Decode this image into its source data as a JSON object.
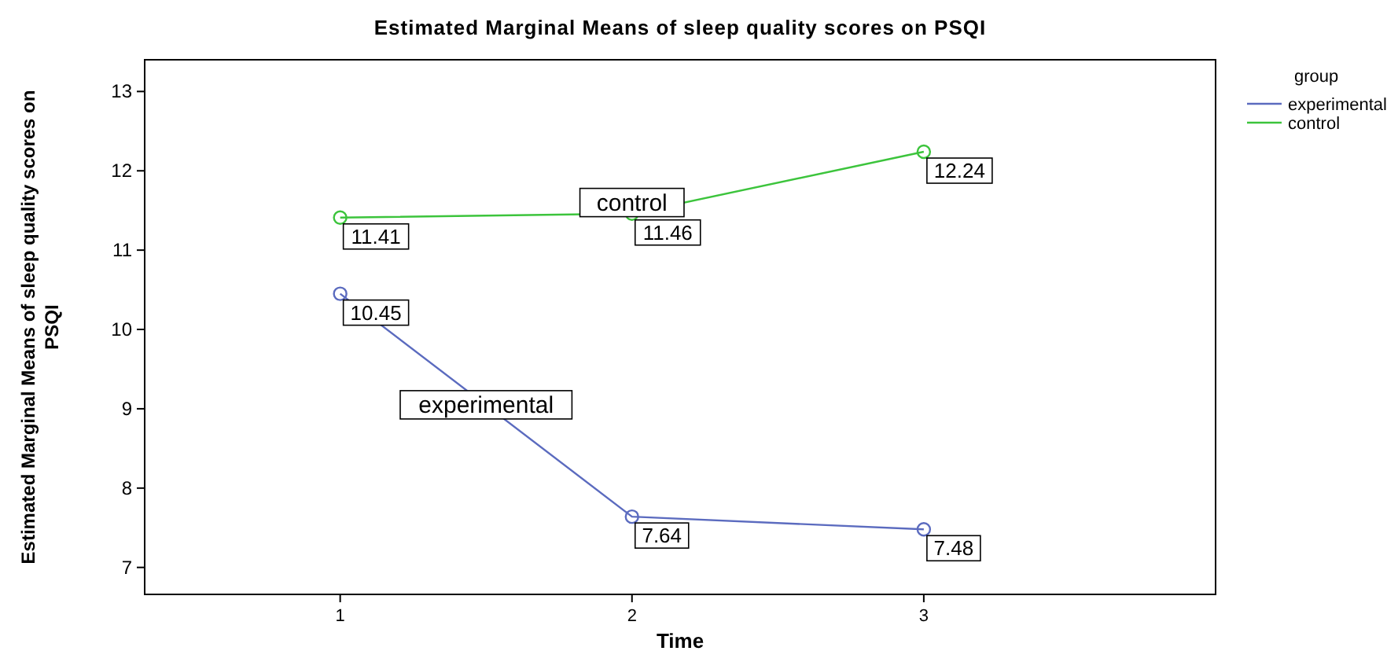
{
  "chart_data": {
    "type": "line",
    "title": "Estimated Marginal Means of sleep quality scores on PSQI",
    "xlabel": "Time",
    "ylabel": "Estimated Marginal Means of sleep quality scores on PSQI",
    "legend_title": "group",
    "x": [
      1,
      2,
      3
    ],
    "xlim": [
      0.33,
      4.0
    ],
    "xticks": [
      1,
      2,
      3
    ],
    "ylim": [
      6.66,
      13.4
    ],
    "yticks": [
      7,
      8,
      9,
      10,
      11,
      12,
      13
    ],
    "series": [
      {
        "name": "experimental",
        "color": "#5b6bbf",
        "values": [
          10.45,
          7.64,
          7.48
        ]
      },
      {
        "name": "control",
        "color": "#3cc43c",
        "values": [
          11.41,
          11.46,
          12.24
        ]
      }
    ],
    "annotations": [
      {
        "text": "control",
        "x": 2,
        "y": 11.6
      },
      {
        "text": "experimental",
        "x": 1.5,
        "y": 9.05
      }
    ],
    "data_labels": true,
    "marker": "circle",
    "line_style": "solid",
    "legend": "top right",
    "grid": false
  }
}
